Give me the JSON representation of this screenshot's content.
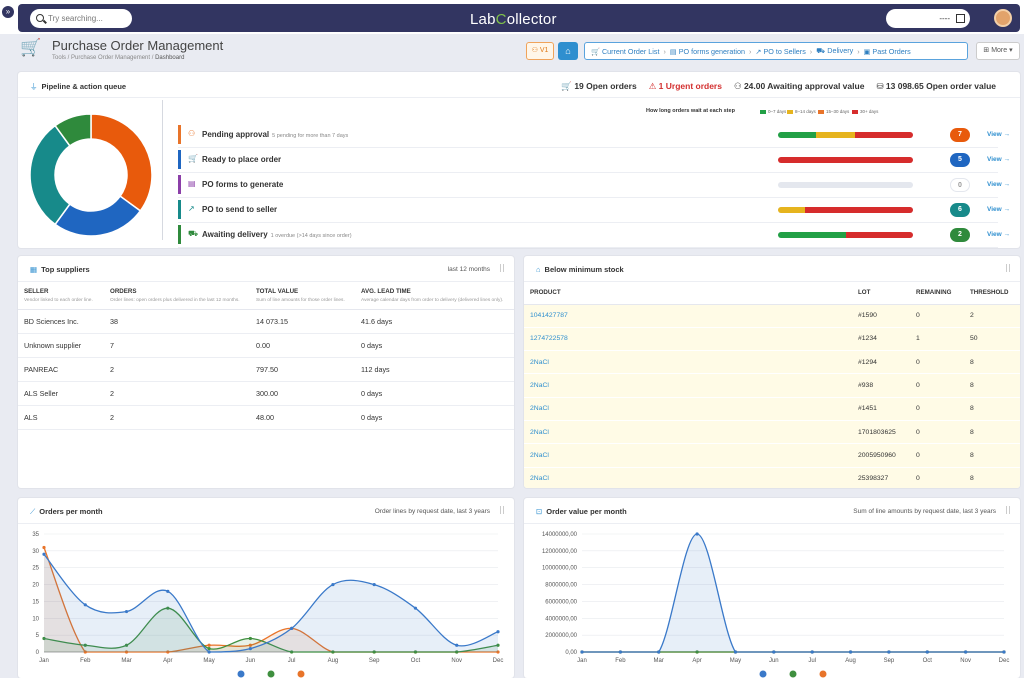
{
  "topbar": {
    "search_placeholder": "Try searching...",
    "logo_pre": "Lab",
    "logo_post": "ollector",
    "user_text": "----"
  },
  "header": {
    "title": "Purchase Order Management",
    "breadcrumb_path": "Tools / Purchase Order Management / ",
    "breadcrumb_current": "Dashboard",
    "version": "V1",
    "nav": [
      "Current Order List",
      "PO forms generation",
      "PO to Sellers",
      "Delivery",
      "Past Orders"
    ],
    "more": "More"
  },
  "pipeline": {
    "title": "Pipeline & action queue",
    "kpis": {
      "open_orders": "19 Open orders",
      "urgent": "1 Urgent orders",
      "awaiting": "24.00 Awaiting approval value",
      "open_value": "13 098.65 Open order value"
    },
    "legend_title": "How long orders wait at each step",
    "legend": [
      {
        "label": "0–7 days",
        "color": "#22a046"
      },
      {
        "label": "8–14 days",
        "color": "#e6b41e"
      },
      {
        "label": "15–30 days",
        "color": "#e8742a"
      },
      {
        "label": "30+ days",
        "color": "#d62c2c"
      }
    ],
    "donut": [
      {
        "value": 7,
        "color": "#e85a0c"
      },
      {
        "value": 5,
        "color": "#1f66c1"
      },
      {
        "value": 6,
        "color": "#178a8a"
      },
      {
        "value": 2,
        "color": "#2f8a3c"
      }
    ],
    "rows": [
      {
        "label": "Pending approval",
        "note": "5 pending for more than 7 days",
        "color": "#e8742a",
        "icon": "user-check-icon",
        "glyph": "⚇",
        "count": "7",
        "count_color": "#e85a0c",
        "segments": [
          {
            "pct": 28,
            "color": "#22a046"
          },
          {
            "pct": 29,
            "color": "#e6b41e"
          },
          {
            "pct": 43,
            "color": "#d62c2c"
          }
        ],
        "view": "View →"
      },
      {
        "label": "Ready to place order",
        "note": "",
        "color": "#1f66c1",
        "icon": "cart-icon",
        "glyph": "🛒",
        "count": "5",
        "count_color": "#1f66c1",
        "segments": [
          {
            "pct": 100,
            "color": "#d62c2c"
          }
        ],
        "view": "View →"
      },
      {
        "label": "PO forms to generate",
        "note": "",
        "color": "#8b3fa8",
        "icon": "document-icon",
        "glyph": "▤",
        "count": "0",
        "count_color": "#ffffff",
        "segments": [],
        "view": "View →"
      },
      {
        "label": "PO to send to seller",
        "note": "",
        "color": "#178a8a",
        "icon": "send-icon",
        "glyph": "↗",
        "count": "6",
        "count_color": "#178a8a",
        "segments": [
          {
            "pct": 20,
            "color": "#e6b41e"
          },
          {
            "pct": 80,
            "color": "#d62c2c"
          }
        ],
        "view": "View →"
      },
      {
        "label": "Awaiting delivery",
        "note": "1 overdue (>14 days since order)",
        "color": "#2f8a3c",
        "icon": "truck-icon",
        "glyph": "⛟",
        "count": "2",
        "count_color": "#2f8a3c",
        "segments": [
          {
            "pct": 50,
            "color": "#22a046"
          },
          {
            "pct": 50,
            "color": "#d62c2c"
          }
        ],
        "view": "View →"
      }
    ]
  },
  "suppliers": {
    "title": "Top suppliers",
    "period": "last 12 months",
    "columns": [
      "SELLER",
      "ORDERS",
      "TOTAL VALUE",
      "AVG. LEAD TIME"
    ],
    "descriptions": [
      "Vendor linked to each order line.",
      "Order lines: open orders plus delivered in the last 12 months.",
      "Sum of line amounts for those order lines.",
      "Average calendar days from order to delivery (delivered lines only)."
    ],
    "rows": [
      [
        "BD Sciences Inc.",
        "38",
        "14 073.15",
        "41.6 days"
      ],
      [
        "Unknown supplier",
        "7",
        "0.00",
        "0 days"
      ],
      [
        "PANREAC",
        "2",
        "797.50",
        "112 days"
      ],
      [
        "ALS Seller",
        "2",
        "300.00",
        "0 days"
      ],
      [
        "ALS",
        "2",
        "48.00",
        "0 days"
      ]
    ]
  },
  "stock": {
    "title": "Below minimum stock",
    "columns": [
      "PRODUCT",
      "LOT",
      "REMAINING",
      "THRESHOLD"
    ],
    "rows": [
      [
        "1041427787",
        "#1590",
        "0",
        "2"
      ],
      [
        "1274722578",
        "#1234",
        "1",
        "50"
      ],
      [
        "2NaCl",
        "#1294",
        "0",
        "8"
      ],
      [
        "2NaCl",
        "#938",
        "0",
        "8"
      ],
      [
        "2NaCl",
        "#1451",
        "0",
        "8"
      ],
      [
        "2NaCl",
        "1701803625",
        "0",
        "8"
      ],
      [
        "2NaCl",
        "2005950960",
        "0",
        "8"
      ],
      [
        "2NaCl",
        "25398327",
        "0",
        "8"
      ]
    ]
  },
  "charts": {
    "orders_title": "Orders per month",
    "orders_subtitle": "Order lines by request date, last 3 years",
    "value_title": "Order value per month",
    "value_subtitle": "Sum of line amounts by request date, last 3 years"
  },
  "chart_data": [
    {
      "type": "line",
      "title": "Orders per month",
      "categories": [
        "Jan",
        "Feb",
        "Mar",
        "Apr",
        "May",
        "Jun",
        "Jul",
        "Aug",
        "Sep",
        "Oct",
        "Nov",
        "Dec"
      ],
      "ylim": [
        0,
        35
      ],
      "yticks": [
        0,
        5,
        10,
        15,
        20,
        25,
        30,
        35
      ],
      "series": [
        {
          "color": "#3a79c9",
          "values": [
            29,
            14,
            12,
            18,
            0,
            1,
            7,
            20,
            20,
            13,
            2,
            6
          ]
        },
        {
          "color": "#3f8f3f",
          "values": [
            4,
            2,
            2,
            13,
            1,
            4,
            0,
            0,
            0,
            0,
            0,
            2
          ]
        },
        {
          "color": "#e8742a",
          "values": [
            31,
            0,
            0,
            0,
            2,
            2,
            7,
            0,
            0,
            0,
            0,
            0
          ]
        }
      ]
    },
    {
      "type": "line",
      "title": "Order value per month",
      "categories": [
        "Jan",
        "Feb",
        "Mar",
        "Apr",
        "May",
        "Jun",
        "Jul",
        "Aug",
        "Sep",
        "Oct",
        "Nov",
        "Dec"
      ],
      "ylim": [
        0,
        14000000
      ],
      "ytick_labels": [
        "0,00",
        "2000000,00",
        "4000000,00",
        "6000000,00",
        "8000000,00",
        "10000000,00",
        "12000000,00",
        "14000000,00"
      ],
      "series": [
        {
          "color": "#3a79c9",
          "values": [
            0,
            0,
            0,
            14000000,
            0,
            0,
            0,
            0,
            0,
            0,
            0,
            0
          ]
        },
        {
          "color": "#3f8f3f",
          "values": [
            0,
            0,
            0,
            0,
            0,
            0,
            0,
            0,
            0,
            0,
            0,
            0
          ]
        },
        {
          "color": "#e8742a",
          "values": [
            0,
            0,
            0,
            0,
            0,
            0,
            0,
            0,
            0,
            0,
            0,
            0
          ]
        }
      ]
    }
  ]
}
